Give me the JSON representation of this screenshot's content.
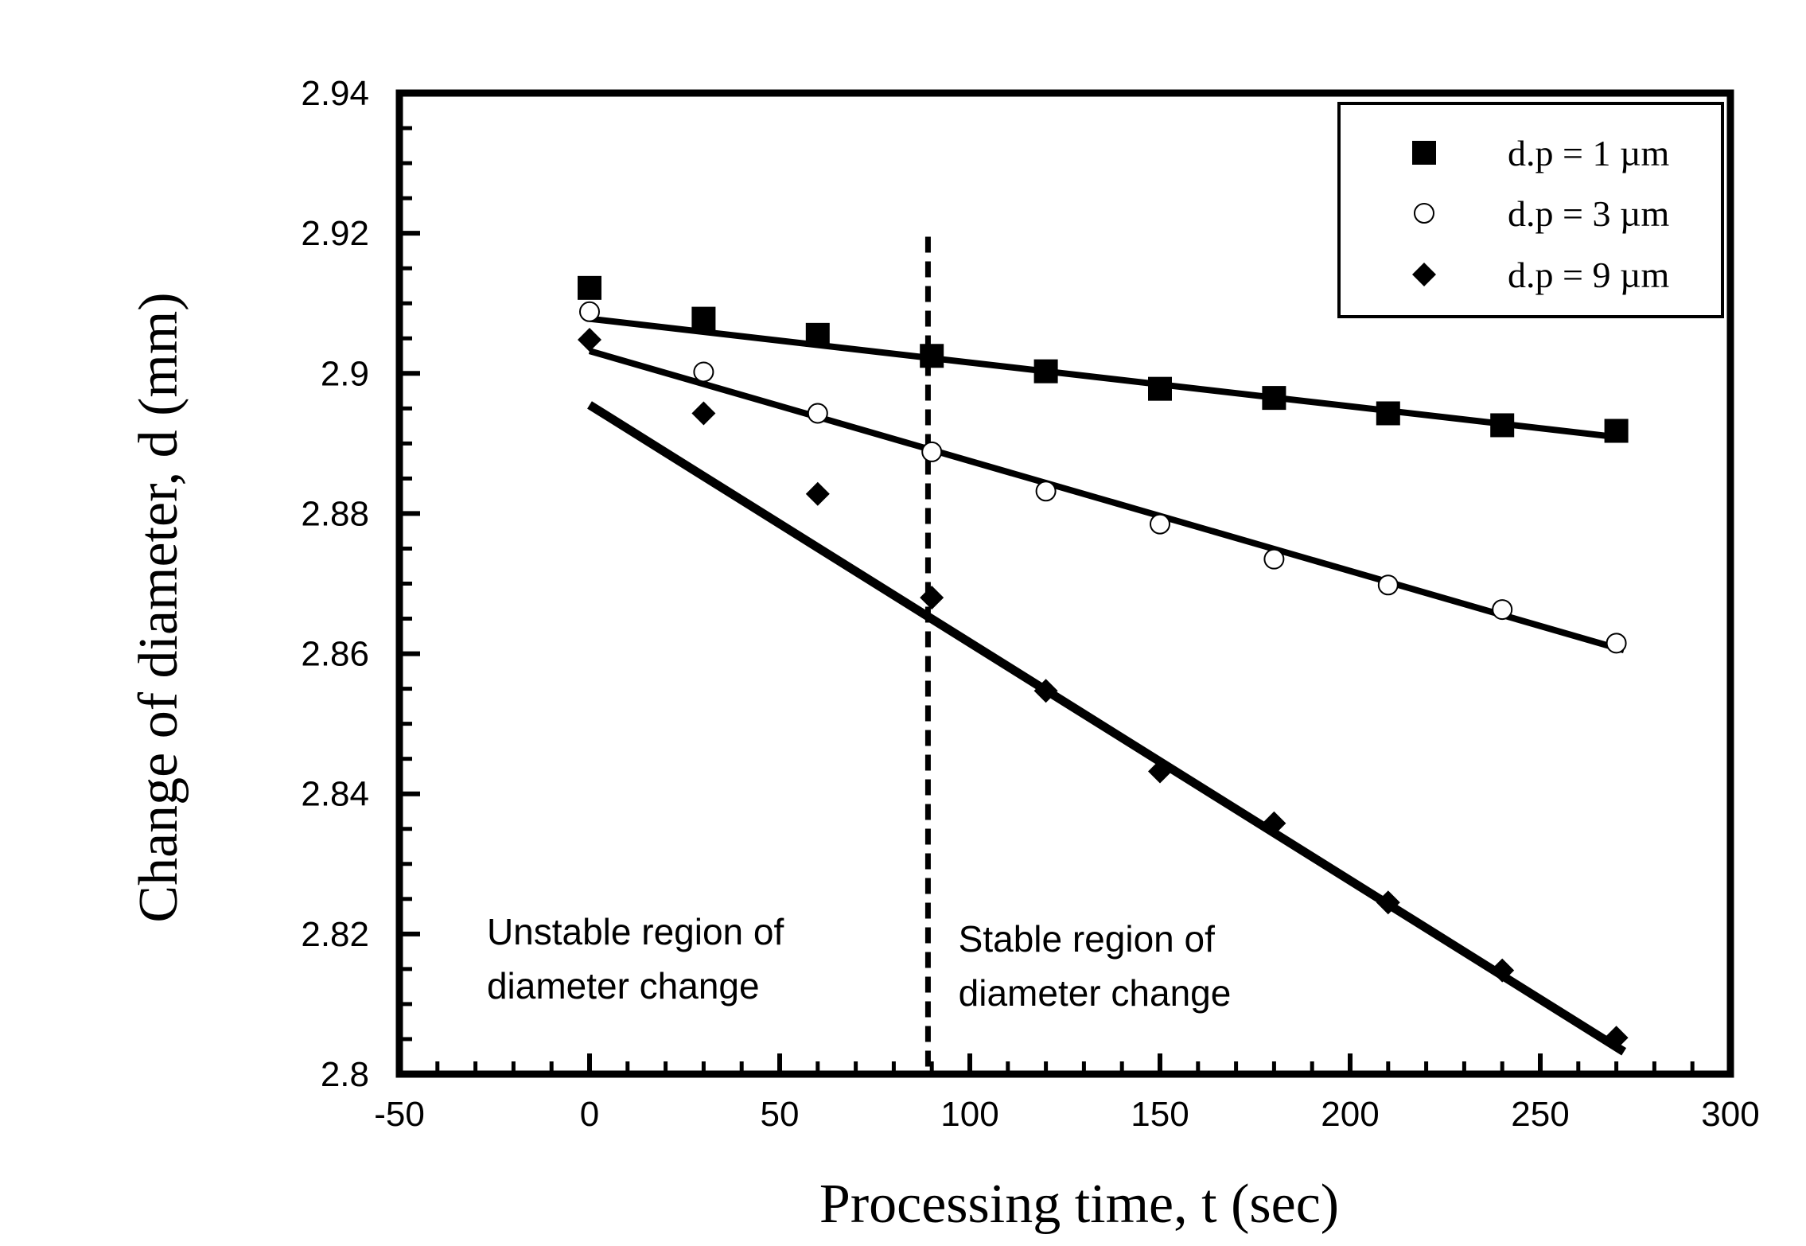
{
  "chart_data": {
    "type": "scatter",
    "title": "",
    "xlabel": "Processing time, t (sec)",
    "ylabel": "Change of diameter, d (mm)",
    "xlim": [
      -50,
      300
    ],
    "ylim": [
      2.8,
      2.94
    ],
    "x_ticks": [
      -50,
      0,
      50,
      100,
      150,
      200,
      250,
      300
    ],
    "x_tick_labels": [
      "-50",
      "0",
      "50",
      "100",
      "150",
      "200",
      "250",
      "300"
    ],
    "y_ticks": [
      2.8,
      2.82,
      2.84,
      2.86,
      2.88,
      2.9,
      2.92,
      2.94
    ],
    "y_tick_labels": [
      "2.8",
      "2.82",
      "2.84",
      "2.86",
      "2.88",
      "2.9",
      "2.92",
      "2.94"
    ],
    "grid": false,
    "legend_position": "top-right",
    "series": [
      {
        "name": "d.p = 1 µm",
        "marker": "square-filled",
        "x": [
          0,
          30,
          60,
          90,
          120,
          150,
          180,
          210,
          240,
          270
        ],
        "y": [
          2.9122,
          2.9078,
          2.9055,
          2.9025,
          2.9003,
          2.8978,
          2.8965,
          2.8943,
          2.8926,
          2.8918
        ],
        "fit": {
          "x": [
            0,
            272
          ],
          "y": [
            2.9078,
            2.8908
          ]
        }
      },
      {
        "name": "d.p = 3 µm",
        "marker": "circle-open",
        "x": [
          0,
          30,
          60,
          90,
          120,
          150,
          180,
          210,
          240,
          270
        ],
        "y": [
          2.9088,
          2.9002,
          2.8943,
          2.8888,
          2.8832,
          2.8785,
          2.8735,
          2.8698,
          2.8663,
          2.8615
        ],
        "fit": {
          "x": [
            0,
            272
          ],
          "y": [
            2.9032,
            2.8605
          ]
        }
      },
      {
        "name": "d.p = 9 µm",
        "marker": "diamond-filled",
        "x": [
          0,
          30,
          60,
          90,
          120,
          150,
          180,
          210,
          240,
          270
        ],
        "y": [
          2.9048,
          2.8943,
          2.8828,
          2.868,
          2.8547,
          2.8432,
          2.8358,
          2.8245,
          2.8148,
          2.8052
        ],
        "fit": {
          "x": [
            0,
            272
          ],
          "y": [
            2.8955,
            2.8032
          ]
        }
      }
    ],
    "vertical_line": {
      "x": 89,
      "y_from": 2.8,
      "y_to": 2.9195,
      "style": "dashed"
    },
    "annotations": [
      {
        "id": "unstable",
        "lines": [
          "Unstable region of",
          "diameter change"
        ],
        "x": -27,
        "y": 2.8185
      },
      {
        "id": "stable",
        "lines": [
          "Stable region of",
          "diameter change"
        ],
        "x": 97,
        "y": 2.8175
      }
    ]
  }
}
